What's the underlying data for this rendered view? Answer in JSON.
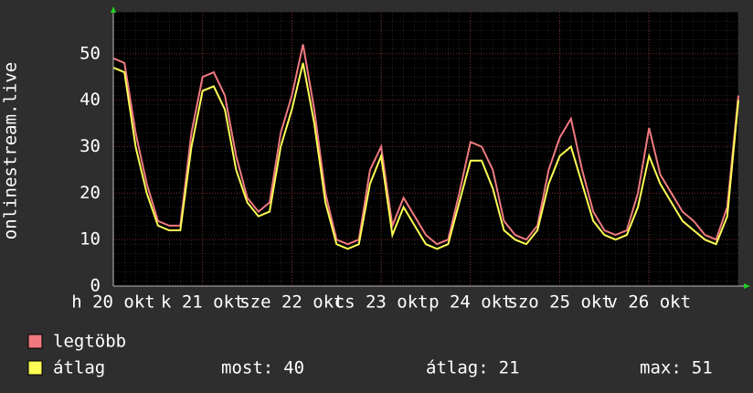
{
  "chart_data": {
    "type": "line",
    "ylabel": "onlinestream.live",
    "x": [
      0,
      0.125,
      0.25,
      0.375,
      0.5,
      0.625,
      0.75,
      0.875,
      1,
      1.125,
      1.25,
      1.375,
      1.5,
      1.625,
      1.75,
      1.875,
      2,
      2.125,
      2.25,
      2.375,
      2.5,
      2.625,
      2.75,
      2.875,
      3,
      3.125,
      3.25,
      3.375,
      3.5,
      3.625,
      3.75,
      3.875,
      4,
      4.125,
      4.25,
      4.375,
      4.5,
      4.625,
      4.75,
      4.875,
      5,
      5.125,
      5.25,
      5.375,
      5.5,
      5.625,
      5.75,
      5.875,
      6,
      6.125,
      6.25,
      6.375,
      6.5,
      6.625,
      6.75,
      6.875,
      7
    ],
    "series": [
      {
        "name": "legtöbb",
        "color": "#f07a80",
        "values": [
          49,
          48,
          33,
          22,
          14,
          13,
          13,
          33,
          45,
          46,
          41,
          28,
          19,
          16,
          18,
          33,
          41,
          52,
          38,
          20,
          10,
          9,
          10,
          25,
          30,
          13,
          19,
          15,
          11,
          9,
          10,
          20,
          31,
          30,
          25,
          14,
          11,
          10,
          13,
          25,
          32,
          36,
          25,
          16,
          12,
          11,
          12,
          20,
          34,
          24,
          20,
          16,
          14,
          11,
          10,
          17,
          41
        ]
      },
      {
        "name": "átlag",
        "color": "#ffff55",
        "values": [
          47,
          46,
          30,
          20,
          13,
          12,
          12,
          30,
          42,
          43,
          38,
          25,
          18,
          15,
          16,
          30,
          38,
          48,
          35,
          18,
          9,
          8,
          9,
          22,
          28,
          11,
          17,
          13,
          9,
          8,
          9,
          18,
          27,
          27,
          21,
          12,
          10,
          9,
          12,
          22,
          28,
          30,
          22,
          14,
          11,
          10,
          11,
          17,
          28,
          22,
          18,
          14,
          12,
          10,
          9,
          15,
          40
        ]
      }
    ],
    "xlim": [
      0,
      7
    ],
    "xticks": [
      {
        "value": 0,
        "label": "h 20 okt"
      },
      {
        "value": 1,
        "label": "k 21 okt"
      },
      {
        "value": 2,
        "label": "sze 22 okt"
      },
      {
        "value": 3,
        "label": "cs 23 okt"
      },
      {
        "value": 4,
        "label": "p 24 okt"
      },
      {
        "value": 5,
        "label": "szo 25 okt"
      },
      {
        "value": 6,
        "label": "v 26 okt"
      }
    ],
    "ylim": [
      0,
      59
    ],
    "yticks": [
      0,
      10,
      20,
      30,
      40,
      50
    ],
    "grid": true,
    "stats": [
      {
        "label": "most:",
        "value": 40
      },
      {
        "label": "átlag:",
        "value": 21
      },
      {
        "label": "max:",
        "value": 51
      }
    ]
  }
}
